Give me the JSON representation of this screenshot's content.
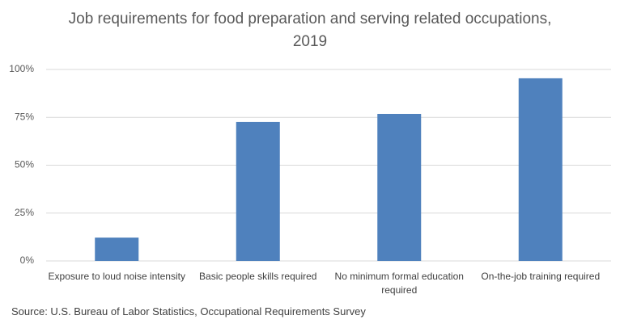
{
  "chart_data": {
    "type": "bar",
    "title": "Job requirements for food preparation and serving related occupations, 2019",
    "categories": [
      "Exposure to loud noise intensity",
      "Basic people skills required",
      "No minimum formal education required",
      "On-the-job training required"
    ],
    "values": [
      12.2,
      72.6,
      76.8,
      95.4
    ],
    "color": "#4f81bd",
    "ylim": [
      0,
      100
    ],
    "yticks": [
      {
        "value": 0,
        "label": "0%"
      },
      {
        "value": 25,
        "label": "25%"
      },
      {
        "value": 50,
        "label": "50%"
      },
      {
        "value": 75,
        "label": "75%"
      },
      {
        "value": 100,
        "label": "100%"
      }
    ],
    "grid": true,
    "source": "Source: U.S. Bureau of Labor Statistics, Occupational Requirements Survey"
  }
}
